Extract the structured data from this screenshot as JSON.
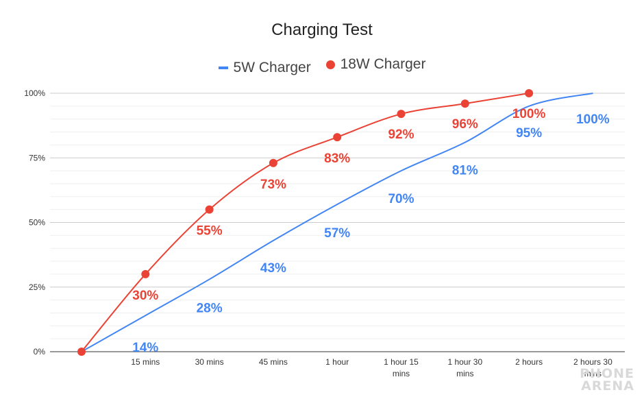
{
  "watermark": [
    "PHONE",
    "ARENA"
  ],
  "chart_data": {
    "type": "line",
    "title": "Charging Test",
    "xlabel": "",
    "ylabel": "",
    "categories": [
      "",
      "15 mins",
      "30 mins",
      "45 mins",
      "1 hour",
      "1 hour 15 mins",
      "1 hour 30 mins",
      "2 hours",
      "2 hours 30 mins"
    ],
    "y_ticks": [
      "0%",
      "25%",
      "50%",
      "75%",
      "100%"
    ],
    "ylim": [
      0,
      100
    ],
    "grid": true,
    "legend_position": "top",
    "series": [
      {
        "name": "5W Charger",
        "color": "#4285f4",
        "marker": "none",
        "values": [
          0,
          14,
          28,
          43,
          57,
          70,
          81,
          95,
          100
        ],
        "labels": [
          "",
          "14%",
          "28%",
          "43%",
          "57%",
          "70%",
          "81%",
          "95%",
          "100%"
        ]
      },
      {
        "name": "18W Charger",
        "color": "#ea4335",
        "marker": "circle",
        "values": [
          0,
          30,
          55,
          73,
          83,
          92,
          96,
          100,
          null
        ],
        "labels": [
          "",
          "30%",
          "55%",
          "73%",
          "83%",
          "92%",
          "96%",
          "100%",
          ""
        ]
      }
    ]
  }
}
